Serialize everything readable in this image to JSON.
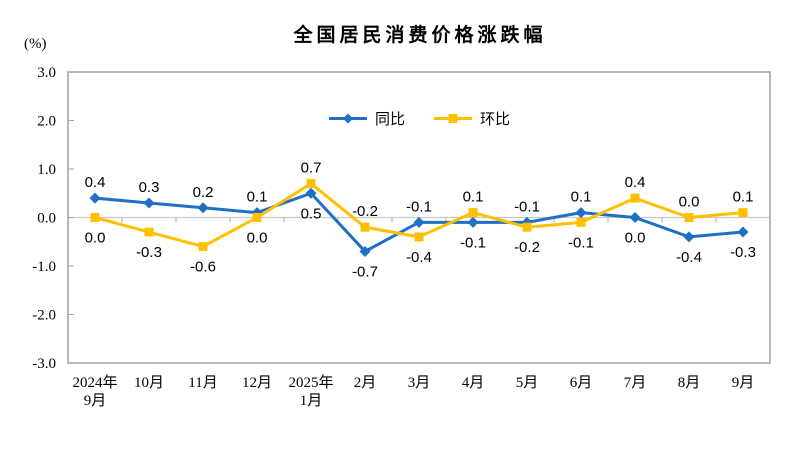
{
  "chart_data": {
    "type": "line",
    "title": "全国居民消费价格涨跌幅",
    "ylabel": "(%)",
    "ylim": [
      -3.0,
      3.0
    ],
    "yticks": [
      "3.0",
      "2.0",
      "1.0",
      "0.0",
      "-1.0",
      "-2.0",
      "-3.0"
    ],
    "grid": false,
    "legend_position": "top-center",
    "data_labels": true,
    "categories": [
      "2024年\n9月",
      "10月",
      "11月",
      "12月",
      "2025年\n1月",
      "2月",
      "3月",
      "4月",
      "5月",
      "6月",
      "7月",
      "8月",
      "9月"
    ],
    "series": [
      {
        "name": "同比",
        "color": "#1F6FC4",
        "marker": "diamond",
        "values": [
          0.4,
          0.3,
          0.2,
          0.1,
          0.5,
          -0.7,
          -0.1,
          -0.1,
          -0.1,
          0.1,
          0.0,
          -0.4,
          -0.3
        ]
      },
      {
        "name": "环比",
        "color": "#FFC000",
        "marker": "square",
        "values": [
          0.0,
          -0.3,
          -0.6,
          0.0,
          0.7,
          -0.2,
          -0.4,
          0.1,
          -0.2,
          -0.1,
          0.4,
          0.0,
          0.1
        ]
      }
    ],
    "axis_colors": {
      "frame": "#A6A6A6",
      "zero_line": "#C9C9C9",
      "tick": "#ADADAD"
    }
  }
}
